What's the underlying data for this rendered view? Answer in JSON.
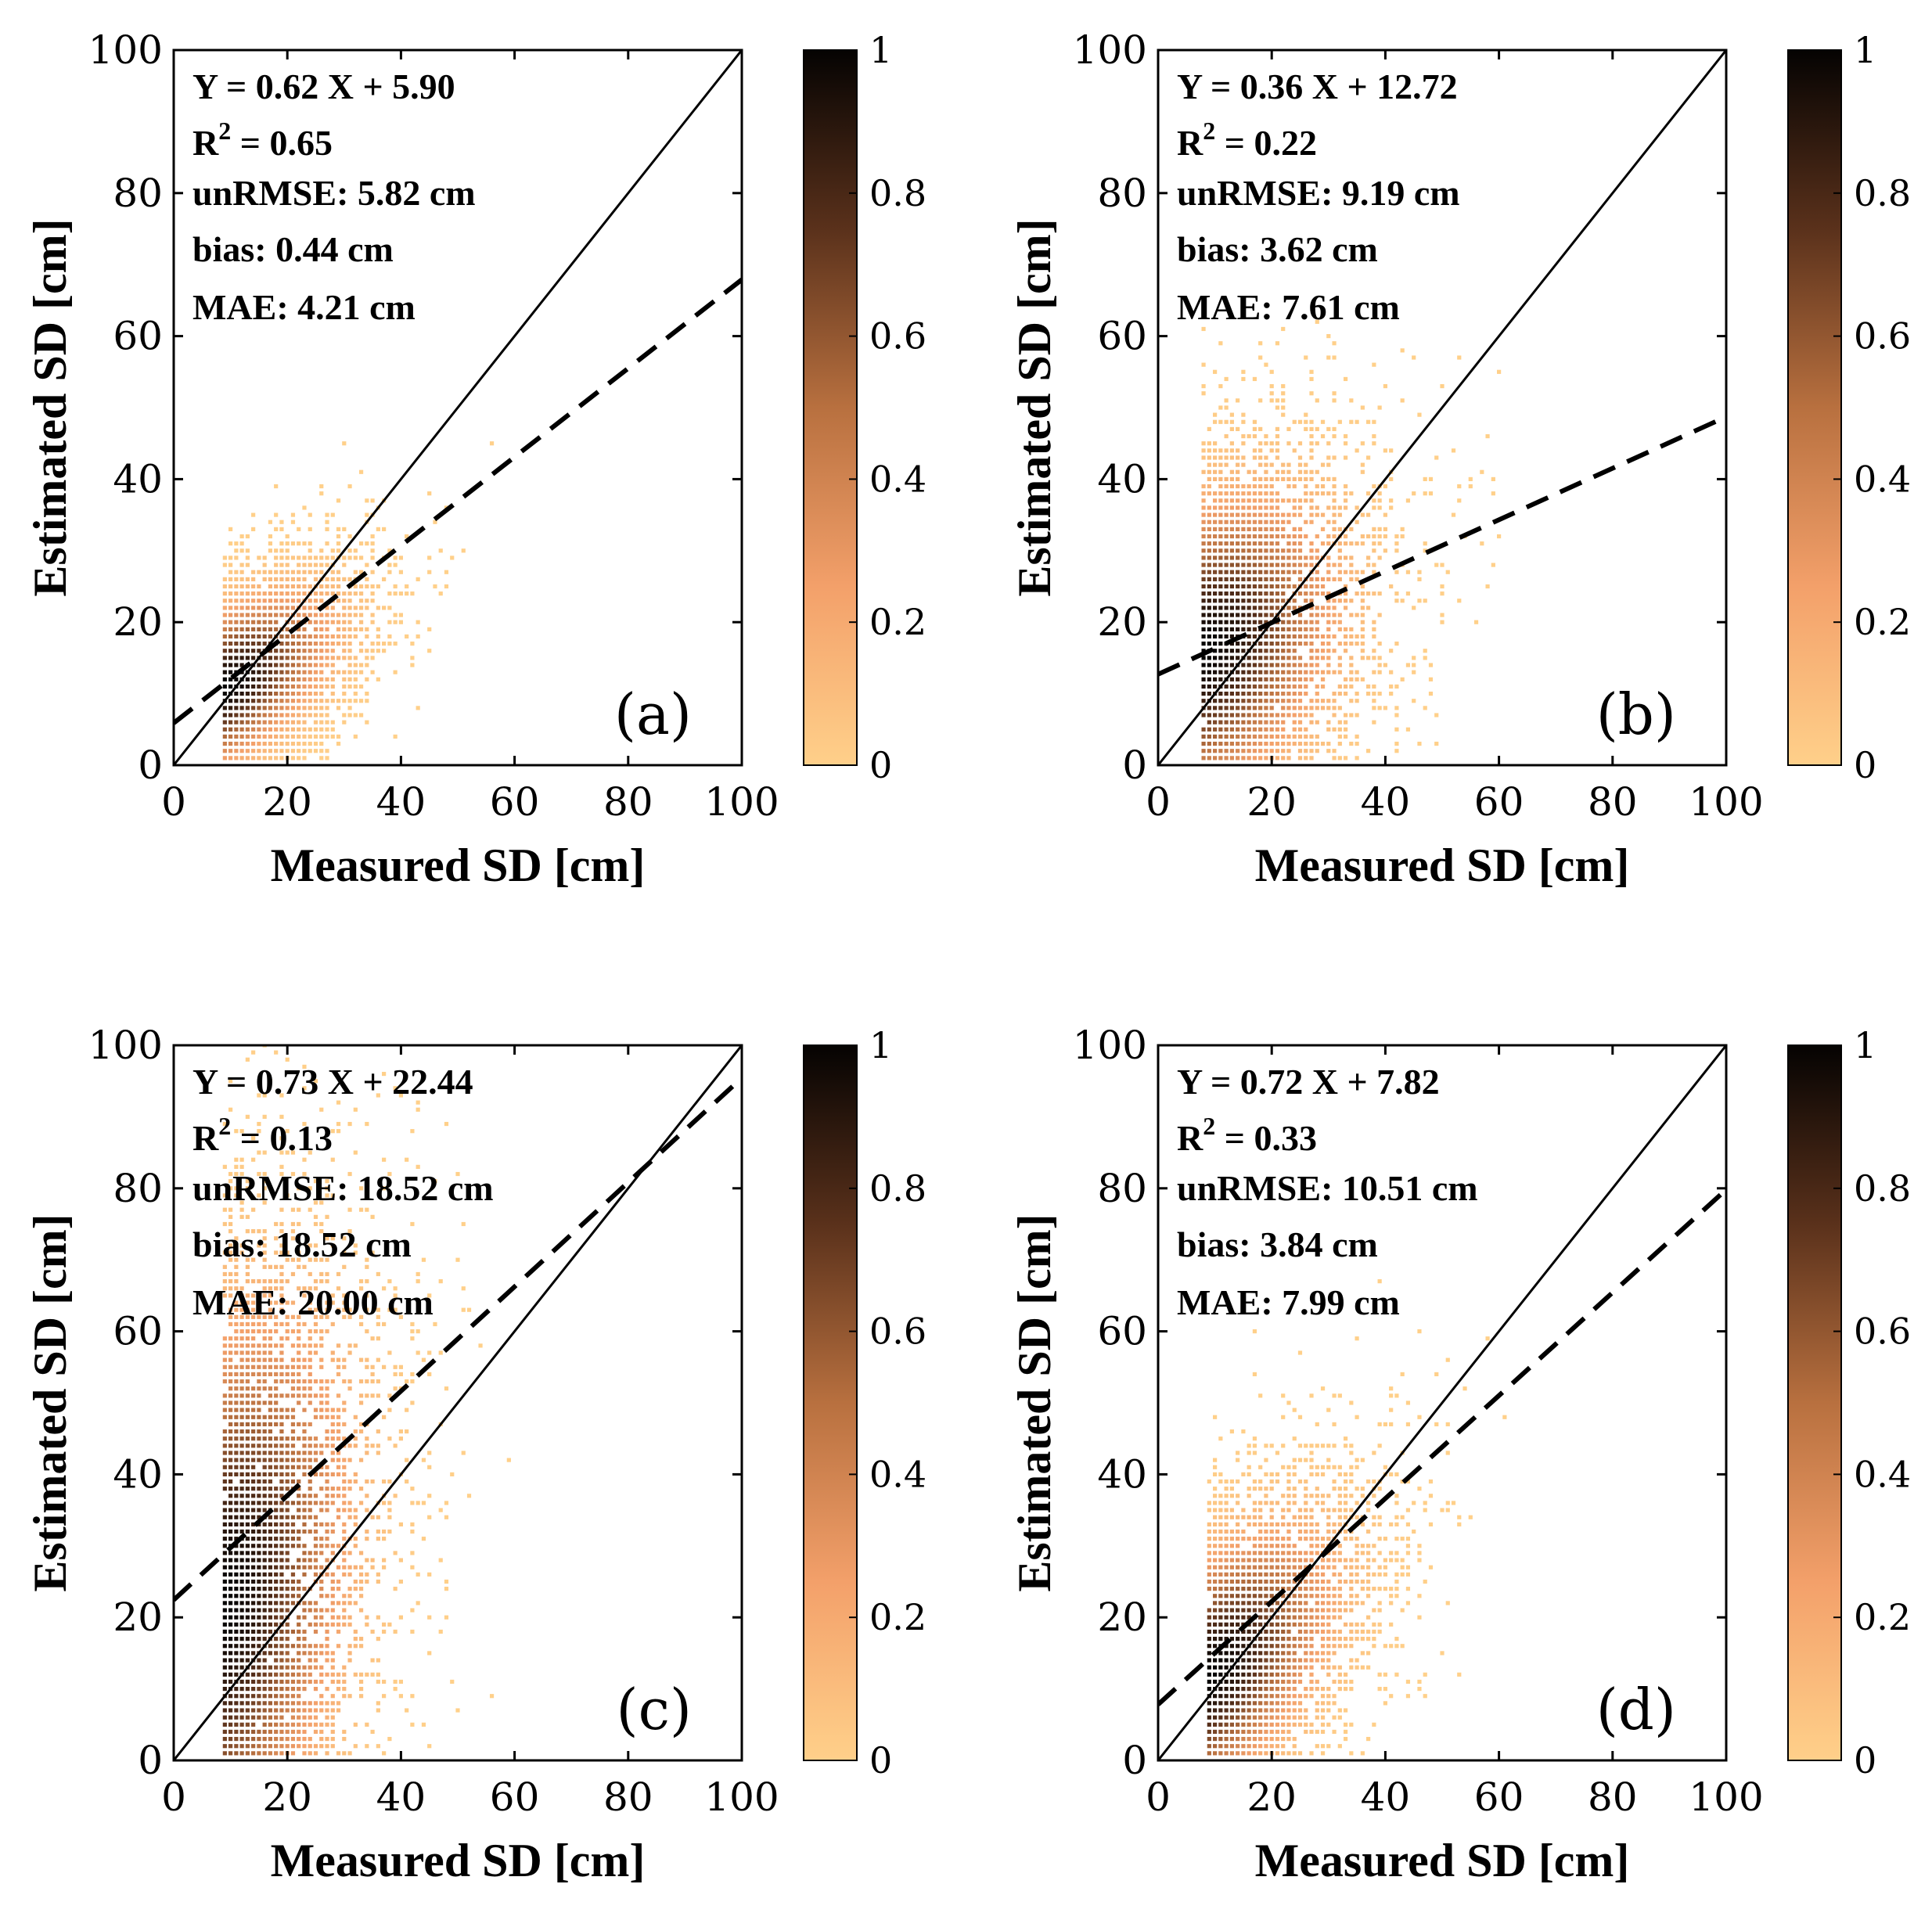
{
  "chart_data": [
    {
      "type": "scatter",
      "panel_label": "(a)",
      "xlabel": "Measured SD [cm]",
      "ylabel": "Estimated SD [cm]",
      "xlim": [
        0,
        100
      ],
      "ylim": [
        0,
        100
      ],
      "xticks": [
        "0",
        "20",
        "40",
        "60",
        "80",
        "100"
      ],
      "yticks": [
        "0",
        "20",
        "40",
        "60",
        "80",
        "100"
      ],
      "fit": {
        "slope": 0.62,
        "intercept": 5.9
      },
      "stats": {
        "equation": "Y = 0.62 X + 5.90",
        "r2_prefix": "R",
        "r2_sup": "2",
        "r2_value": " = 0.65",
        "unrmse": "unRMSE: 5.82 cm",
        "bias": "bias: 0.44 cm",
        "mae": "MAE: 4.21 cm"
      },
      "density": {
        "center": [
          9,
          11
        ],
        "spread": [
          13,
          9
        ],
        "corr": 0.55,
        "x_range": [
          0,
          62
        ],
        "y_range": [
          0,
          52
        ]
      },
      "colorbar": {
        "min": 0,
        "max": 1,
        "ticks": [
          "0",
          "0.2",
          "0.4",
          "0.6",
          "0.8",
          "1"
        ]
      }
    },
    {
      "type": "scatter",
      "panel_label": "(b)",
      "xlabel": "Measured SD [cm]",
      "ylabel": "Estimated SD [cm]",
      "xlim": [
        0,
        100
      ],
      "ylim": [
        0,
        100
      ],
      "xticks": [
        "0",
        "20",
        "40",
        "60",
        "80",
        "100"
      ],
      "yticks": [
        "0",
        "20",
        "40",
        "60",
        "80",
        "100"
      ],
      "fit": {
        "slope": 0.36,
        "intercept": 12.72
      },
      "stats": {
        "equation": "Y = 0.36 X + 12.72",
        "r2_prefix": "R",
        "r2_sup": "2",
        "r2_value": " = 0.22",
        "unrmse": "unRMSE: 9.19 cm",
        "bias": "bias: 3.62 cm",
        "mae": "MAE: 7.61 cm"
      },
      "density": {
        "center": [
          8,
          16
        ],
        "spread": [
          16,
          15
        ],
        "corr": 0.3,
        "x_range": [
          0,
          60
        ],
        "y_range": [
          0,
          62
        ]
      },
      "colorbar": {
        "min": 0,
        "max": 1,
        "ticks": [
          "0",
          "0.2",
          "0.4",
          "0.6",
          "0.8",
          "1"
        ]
      }
    },
    {
      "type": "scatter",
      "panel_label": "(c)",
      "xlabel": "Measured SD [cm]",
      "ylabel": "Estimated SD [cm]",
      "xlim": [
        0,
        100
      ],
      "ylim": [
        0,
        100
      ],
      "xticks": [
        "0",
        "20",
        "40",
        "60",
        "80",
        "100"
      ],
      "yticks": [
        "0",
        "20",
        "40",
        "60",
        "80",
        "100"
      ],
      "fit": {
        "slope": 0.73,
        "intercept": 22.44
      },
      "stats": {
        "equation": "Y = 0.73 X + 22.44",
        "r2_prefix": "R",
        "r2_sup": "2",
        "r2_value": " = 0.13",
        "unrmse": "unRMSE: 18.52 cm",
        "bias": "bias: 18.52 cm",
        "mae": "MAE: 20.00 cm"
      },
      "density": {
        "center": [
          9,
          22
        ],
        "spread": [
          15,
          28
        ],
        "corr": 0.3,
        "x_range": [
          0,
          60
        ],
        "y_range": [
          0,
          100
        ]
      },
      "colorbar": {
        "min": 0,
        "max": 1,
        "ticks": [
          "0",
          "0.2",
          "0.4",
          "0.6",
          "0.8",
          "1"
        ]
      }
    },
    {
      "type": "scatter",
      "panel_label": "(d)",
      "xlabel": "Measured SD [cm]",
      "ylabel": "Estimated SD [cm]",
      "xlim": [
        0,
        100
      ],
      "ylim": [
        0,
        100
      ],
      "xticks": [
        "0",
        "20",
        "40",
        "60",
        "80",
        "100"
      ],
      "yticks": [
        "0",
        "20",
        "40",
        "60",
        "80",
        "100"
      ],
      "fit": {
        "slope": 0.72,
        "intercept": 7.82
      },
      "stats": {
        "equation": "Y = 0.72 X + 7.82",
        "r2_prefix": "R",
        "r2_sup": "2",
        "r2_value": " = 0.33",
        "unrmse": "unRMSE: 10.51 cm",
        "bias": "bias: 3.84 cm",
        "mae": "MAE: 7.99 cm"
      },
      "density": {
        "center": [
          9,
          12
        ],
        "spread": [
          15,
          14
        ],
        "corr": 0.55,
        "x_range": [
          0,
          62
        ],
        "y_range": [
          0,
          72
        ]
      },
      "colorbar": {
        "min": 0,
        "max": 1,
        "ticks": [
          "0",
          "0.2",
          "0.4",
          "0.6",
          "0.8",
          "1"
        ]
      }
    }
  ],
  "colors": {
    "light": "#FFD08A",
    "mid": "#F09A62",
    "brown": "#8A4E2A",
    "dark": "#1A0F08",
    "black": "#000000"
  }
}
